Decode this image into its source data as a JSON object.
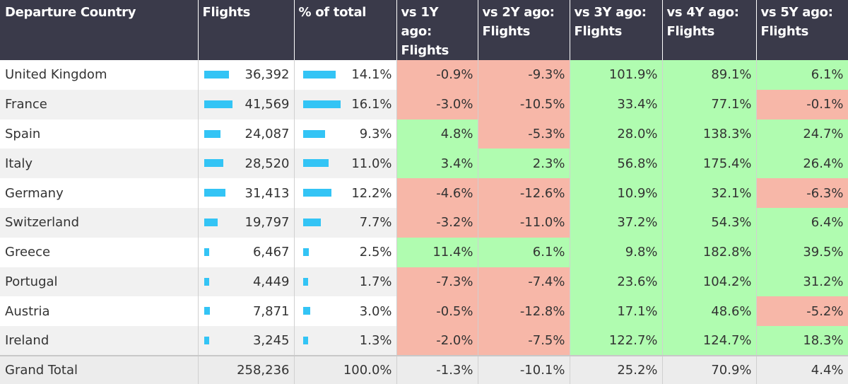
{
  "chart_data": {
    "type": "table",
    "columns": [
      "Departure Country",
      "Flights",
      "% of total",
      "vs 1Y ago: Flights",
      "vs 2Y ago: Flights",
      "vs 3Y ago: Flights",
      "vs 4Y ago: Flights",
      "vs 5Y ago: Flights"
    ],
    "rows": [
      {
        "country": "United Kingdom",
        "flights": "36,392",
        "flights_value": 36392,
        "pct": "14.1%",
        "pct_value": 14.1,
        "changes": [
          "-0.9%",
          "-9.3%",
          "101.9%",
          "89.1%",
          "6.1%"
        ]
      },
      {
        "country": "France",
        "flights": "41,569",
        "flights_value": 41569,
        "pct": "16.1%",
        "pct_value": 16.1,
        "changes": [
          "-3.0%",
          "-10.5%",
          "33.4%",
          "77.1%",
          "-0.1%"
        ]
      },
      {
        "country": "Spain",
        "flights": "24,087",
        "flights_value": 24087,
        "pct": "9.3%",
        "pct_value": 9.3,
        "changes": [
          "4.8%",
          "-5.3%",
          "28.0%",
          "138.3%",
          "24.7%"
        ]
      },
      {
        "country": "Italy",
        "flights": "28,520",
        "flights_value": 28520,
        "pct": "11.0%",
        "pct_value": 11.0,
        "changes": [
          "3.4%",
          "2.3%",
          "56.8%",
          "175.4%",
          "26.4%"
        ]
      },
      {
        "country": "Germany",
        "flights": "31,413",
        "flights_value": 31413,
        "pct": "12.2%",
        "pct_value": 12.2,
        "changes": [
          "-4.6%",
          "-12.6%",
          "10.9%",
          "32.1%",
          "-6.3%"
        ]
      },
      {
        "country": "Switzerland",
        "flights": "19,797",
        "flights_value": 19797,
        "pct": "7.7%",
        "pct_value": 7.7,
        "changes": [
          "-3.2%",
          "-11.0%",
          "37.2%",
          "54.3%",
          "6.4%"
        ]
      },
      {
        "country": "Greece",
        "flights": "6,467",
        "flights_value": 6467,
        "pct": "2.5%",
        "pct_value": 2.5,
        "changes": [
          "11.4%",
          "6.1%",
          "9.8%",
          "182.8%",
          "39.5%"
        ]
      },
      {
        "country": "Portugal",
        "flights": "4,449",
        "flights_value": 4449,
        "pct": "1.7%",
        "pct_value": 1.7,
        "changes": [
          "-7.3%",
          "-7.4%",
          "23.6%",
          "104.2%",
          "31.2%"
        ]
      },
      {
        "country": "Austria",
        "flights": "7,871",
        "flights_value": 7871,
        "pct": "3.0%",
        "pct_value": 3.0,
        "changes": [
          "-0.5%",
          "-12.8%",
          "17.1%",
          "48.6%",
          "-5.2%"
        ]
      },
      {
        "country": "Ireland",
        "flights": "3,245",
        "flights_value": 3245,
        "pct": "1.3%",
        "pct_value": 1.3,
        "changes": [
          "-2.0%",
          "-7.5%",
          "122.7%",
          "124.7%",
          "18.3%"
        ]
      }
    ],
    "total": {
      "label": "Grand Total",
      "flights": "258,236",
      "pct": "100.0%",
      "changes": [
        "-1.3%",
        "-10.1%",
        "25.2%",
        "70.9%",
        "4.4%"
      ]
    }
  },
  "colors": {
    "header_bg": "#3a3a4a",
    "bar": "#33c4f5",
    "positive_bg": "#b0fcb0",
    "negative_bg": "#f7b7a8",
    "total_bg": "#ececec"
  }
}
